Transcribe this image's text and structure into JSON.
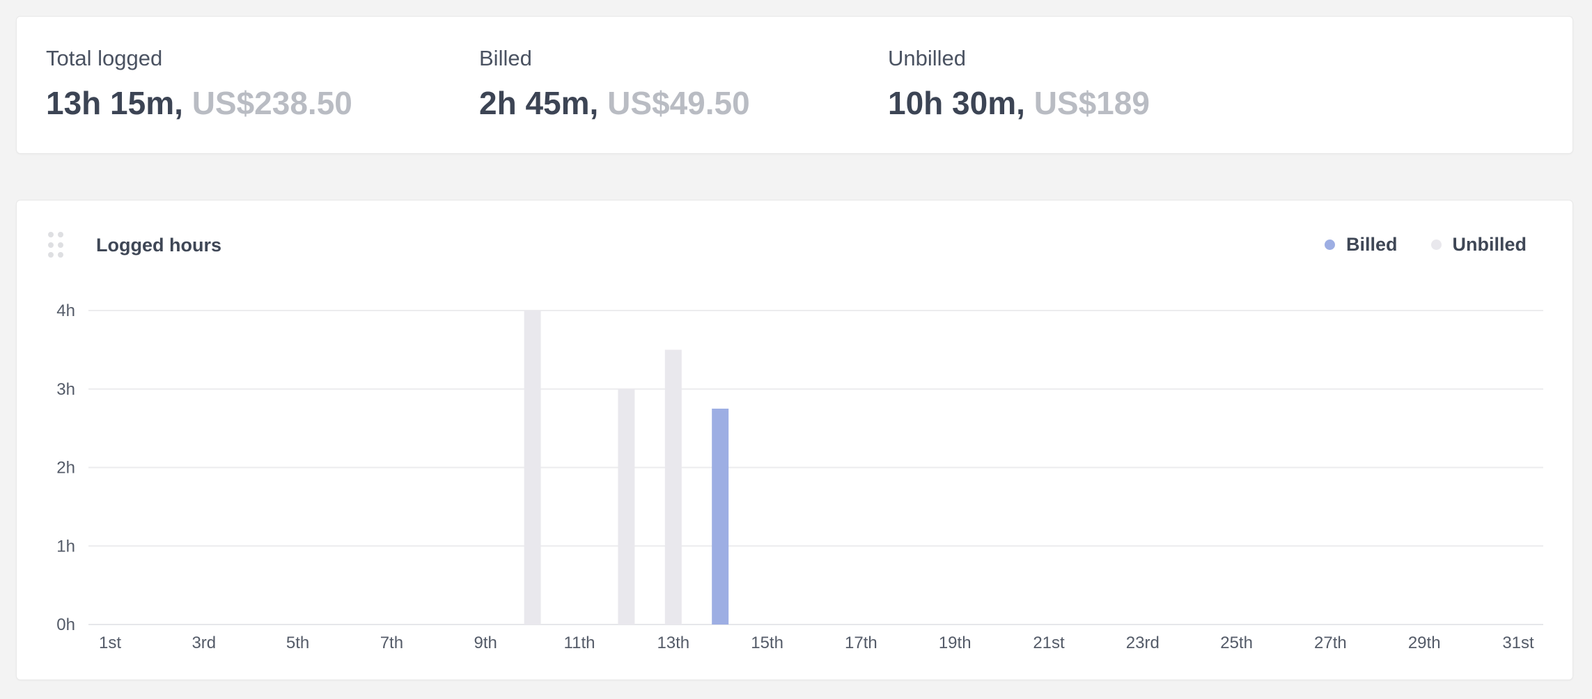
{
  "summary": {
    "total": {
      "label": "Total logged",
      "time": "13h 15m,",
      "amount": "US$238.50"
    },
    "billed": {
      "label": "Billed",
      "time": "2h 45m,",
      "amount": "US$49.50"
    },
    "unbilled": {
      "label": "Unbilled",
      "time": "10h 30m,",
      "amount": "US$189"
    }
  },
  "chart_card": {
    "title": "Logged hours",
    "legend": [
      {
        "label": "Billed",
        "color": "#9daee3"
      },
      {
        "label": "Unbilled",
        "color": "#e9e8ed"
      }
    ]
  },
  "chart_data": {
    "type": "bar",
    "title": "Logged hours",
    "xlabel": "",
    "ylabel": "",
    "ylim": [
      0,
      4
    ],
    "y_ticks": [
      "0h",
      "1h",
      "2h",
      "3h",
      "4h"
    ],
    "x_tick_labels": [
      "1st",
      "3rd",
      "5th",
      "7th",
      "9th",
      "11th",
      "13th",
      "15th",
      "17th",
      "19th",
      "21st",
      "23rd",
      "25th",
      "27th",
      "29th",
      "31st"
    ],
    "categories": [
      "1",
      "2",
      "3",
      "4",
      "5",
      "6",
      "7",
      "8",
      "9",
      "10",
      "11",
      "12",
      "13",
      "14",
      "15",
      "16",
      "17",
      "18",
      "19",
      "20",
      "21",
      "22",
      "23",
      "24",
      "25",
      "26",
      "27",
      "28",
      "29",
      "30",
      "31"
    ],
    "series": [
      {
        "name": "Billed",
        "color": "#9daee3",
        "values": [
          0,
          0,
          0,
          0,
          0,
          0,
          0,
          0,
          0,
          0,
          0,
          0,
          0,
          2.75,
          0,
          0,
          0,
          0,
          0,
          0,
          0,
          0,
          0,
          0,
          0,
          0,
          0,
          0,
          0,
          0,
          0
        ]
      },
      {
        "name": "Unbilled",
        "color": "#e9e8ed",
        "values": [
          0,
          0,
          0,
          0,
          0,
          0,
          0,
          0,
          0,
          4,
          0,
          3,
          3.5,
          0,
          0,
          0,
          0,
          0,
          0,
          0,
          0,
          0,
          0,
          0,
          0,
          0,
          0,
          0,
          0,
          0,
          0
        ]
      }
    ],
    "grid": true,
    "legend_position": "top-right"
  }
}
